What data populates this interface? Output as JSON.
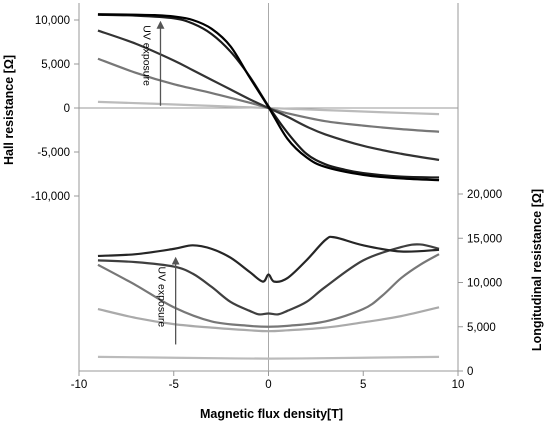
{
  "chart_data": {
    "type": "line",
    "xlabel": "Magnetic flux density[T]",
    "xlim": [
      -10,
      10
    ],
    "x_ticks": [
      -10,
      -5,
      0,
      5,
      10
    ],
    "x_tick_labels": [
      "-10",
      "-5",
      "0",
      "5",
      "10"
    ],
    "grid": false,
    "legend": "none",
    "upper_panel": {
      "ylabel": "Hall resistance [Ω]",
      "ylim": [
        -12000,
        11500
      ],
      "y_ticks": [
        10000,
        5000,
        0,
        -5000,
        -10000
      ],
      "y_tick_labels": [
        "10,000",
        "5,000",
        "0",
        "-5,000",
        "-10,000"
      ],
      "annotation": "UV exposure",
      "series": [
        {
          "color": "#bbbbbb",
          "x": [
            -9,
            -6,
            -3,
            0,
            3,
            6,
            9
          ],
          "values": [
            700,
            480,
            240,
            0,
            -240,
            -480,
            -700
          ]
        },
        {
          "color": "#777777",
          "x": [
            -9,
            -7,
            -5,
            -3,
            -1,
            0,
            1,
            3,
            5,
            7,
            9
          ],
          "values": [
            5600,
            4000,
            2700,
            1700,
            600,
            0,
            -600,
            -1500,
            -2000,
            -2400,
            -2700
          ]
        },
        {
          "color": "#333333",
          "x": [
            -9,
            -7,
            -5,
            -4,
            -3,
            -2,
            -1,
            0,
            1,
            2,
            3,
            5,
            7,
            9
          ],
          "values": [
            8800,
            7300,
            5400,
            4300,
            3200,
            2100,
            1000,
            0,
            -1000,
            -2100,
            -3000,
            -4300,
            -5200,
            -5900
          ]
        },
        {
          "color": "#1a1a1a",
          "x": [
            -9,
            -7,
            -5,
            -4,
            -3,
            -2,
            -1,
            0,
            1,
            2,
            3,
            4,
            5,
            7,
            9
          ],
          "values": [
            10600,
            10500,
            10200,
            9600,
            8400,
            6400,
            3600,
            200,
            -2800,
            -5200,
            -6400,
            -7000,
            -7400,
            -7800,
            -7900
          ]
        },
        {
          "color": "#000000",
          "x": [
            -9,
            -7,
            -6,
            -5,
            -4,
            -3,
            -2,
            -1,
            0,
            1,
            2,
            3,
            5,
            7,
            9
          ],
          "values": [
            10650,
            10600,
            10550,
            10400,
            10000,
            9000,
            7000,
            3500,
            100,
            -3500,
            -5600,
            -6700,
            -7600,
            -8000,
            -8200
          ]
        }
      ]
    },
    "lower_panel": {
      "ylabel": "Longitudinal resistance [Ω]",
      "ylim": [
        0,
        23000
      ],
      "y_ticks": [
        0,
        5000,
        10000,
        15000,
        20000
      ],
      "y_tick_labels": [
        "0",
        "5,000",
        "10,000",
        "15,000",
        "20,000"
      ],
      "annotation": "UV exposure",
      "series": [
        {
          "color": "#bbbbbb",
          "x": [
            -9,
            -5,
            0,
            5,
            9
          ],
          "values": [
            1600,
            1500,
            1400,
            1500,
            1600
          ]
        },
        {
          "color": "#aaaaaa",
          "x": [
            -9,
            -7,
            -5,
            -3,
            -1,
            0,
            1,
            3,
            5,
            7,
            9
          ],
          "values": [
            7000,
            6000,
            5300,
            4900,
            4600,
            4500,
            4600,
            4900,
            5500,
            6200,
            7200
          ]
        },
        {
          "color": "#777777",
          "x": [
            -9,
            -7,
            -5,
            -3,
            -1,
            0,
            1,
            3,
            5,
            6,
            7,
            8,
            9
          ],
          "values": [
            12000,
            9700,
            7200,
            5600,
            5100,
            5000,
            5100,
            5600,
            7000,
            8500,
            10500,
            12000,
            13200
          ]
        },
        {
          "color": "#3f3f3f",
          "x": [
            -9,
            -7,
            -5,
            -4,
            -3,
            -2,
            -1,
            -0.5,
            0,
            0.5,
            1,
            2,
            3,
            5,
            7,
            8,
            9
          ],
          "values": [
            12500,
            12300,
            11800,
            11000,
            9500,
            7800,
            6800,
            6400,
            6500,
            6400,
            6800,
            7800,
            9500,
            12500,
            14000,
            14300,
            13800
          ]
        },
        {
          "color": "#262626",
          "x": [
            -9,
            -7,
            -5,
            -4,
            -3,
            -2,
            -1,
            -0.3,
            0,
            0.3,
            1,
            2,
            3,
            3.5,
            5,
            7,
            9
          ],
          "values": [
            13000,
            13200,
            13800,
            14200,
            13800,
            12800,
            11200,
            10100,
            10900,
            10100,
            10500,
            12500,
            14800,
            15100,
            14200,
            13500,
            13700
          ]
        }
      ]
    }
  }
}
